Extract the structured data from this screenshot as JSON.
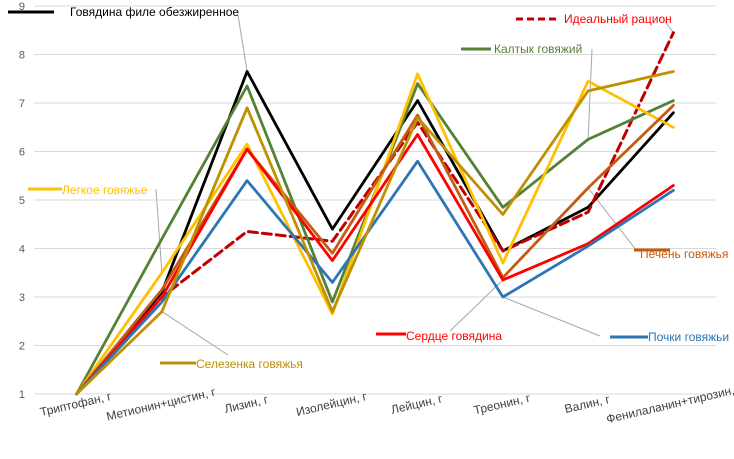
{
  "chart_data": {
    "type": "line",
    "title": "",
    "xlabel": "",
    "ylabel": "",
    "ylim": [
      1,
      9
    ],
    "yticks": [
      1,
      2,
      3,
      4,
      5,
      6,
      7,
      8,
      9
    ],
    "grid": true,
    "categories": [
      "Триптофан, г",
      "Метионин+цистин, г",
      "Лизин, г",
      "Изолейцин, г",
      "Лейцин, г",
      "Треонин, г",
      "Валин, г",
      "Фенилаланин+тирозин,г"
    ],
    "series": [
      {
        "name": "Говядина филе обезжиренное",
        "color": "#000000",
        "dashed": false,
        "values": [
          1.0,
          3.1,
          7.65,
          4.4,
          7.05,
          3.95,
          4.85,
          6.8
        ]
      },
      {
        "name": "Идеальный рацион",
        "color": "#c00000",
        "dashed": true,
        "values": [
          1.0,
          3.0,
          4.35,
          4.15,
          6.6,
          3.95,
          4.75,
          8.45
        ]
      },
      {
        "name": "Калтык говяжий",
        "color": "#548235",
        "dashed": false,
        "values": [
          1.0,
          4.2,
          7.35,
          2.9,
          7.4,
          4.85,
          6.25,
          7.05
        ]
      },
      {
        "name": "Легкое говяжье",
        "color": "#ffc000",
        "dashed": false,
        "values": [
          1.0,
          3.5,
          6.15,
          2.65,
          7.6,
          3.7,
          7.45,
          6.5
        ]
      },
      {
        "name": "Печень говяжья",
        "color": "#c55a11",
        "dashed": false,
        "values": [
          1.0,
          3.15,
          6.05,
          3.9,
          6.75,
          3.4,
          5.25,
          6.95
        ]
      },
      {
        "name": "Сердце говядина",
        "color": "#ff0000",
        "dashed": false,
        "values": [
          1.0,
          3.0,
          6.05,
          3.75,
          6.35,
          3.35,
          4.1,
          5.3
        ]
      },
      {
        "name": "Почки говяжьи",
        "color": "#2e75b6",
        "dashed": false,
        "values": [
          1.0,
          2.9,
          5.4,
          3.3,
          5.8,
          3.0,
          4.05,
          5.2
        ]
      },
      {
        "name": "Селезенка говяжья",
        "color": "#bf9000",
        "dashed": false,
        "values": [
          1.0,
          2.7,
          6.9,
          2.7,
          6.7,
          4.7,
          7.25,
          7.65
        ]
      }
    ],
    "annotations": [
      {
        "series": 0,
        "label": "Говядина филе обезжиренное",
        "label_color": "#000000",
        "point": 2
      },
      {
        "series": 1,
        "label": "Идеальный рацион",
        "label_color": "#ff0000",
        "point": 7
      },
      {
        "series": 2,
        "label": "Калтык говяжий",
        "label_color": "#548235",
        "point": 6
      },
      {
        "series": 3,
        "label": "Легкое говяжье",
        "label_color": "#ffc000",
        "point": 1
      },
      {
        "series": 4,
        "label": "Печень говяжья",
        "label_color": "#c55a11",
        "point": 6
      },
      {
        "series": 5,
        "label": "Сердце говядина",
        "label_color": "#ff0000",
        "point": 5
      },
      {
        "series": 6,
        "label": "Почки говяжьи",
        "label_color": "#2e75b6",
        "point": 5
      },
      {
        "series": 7,
        "label": "Селезенка говяжья",
        "label_color": "#bf9000",
        "point": 1
      }
    ]
  }
}
